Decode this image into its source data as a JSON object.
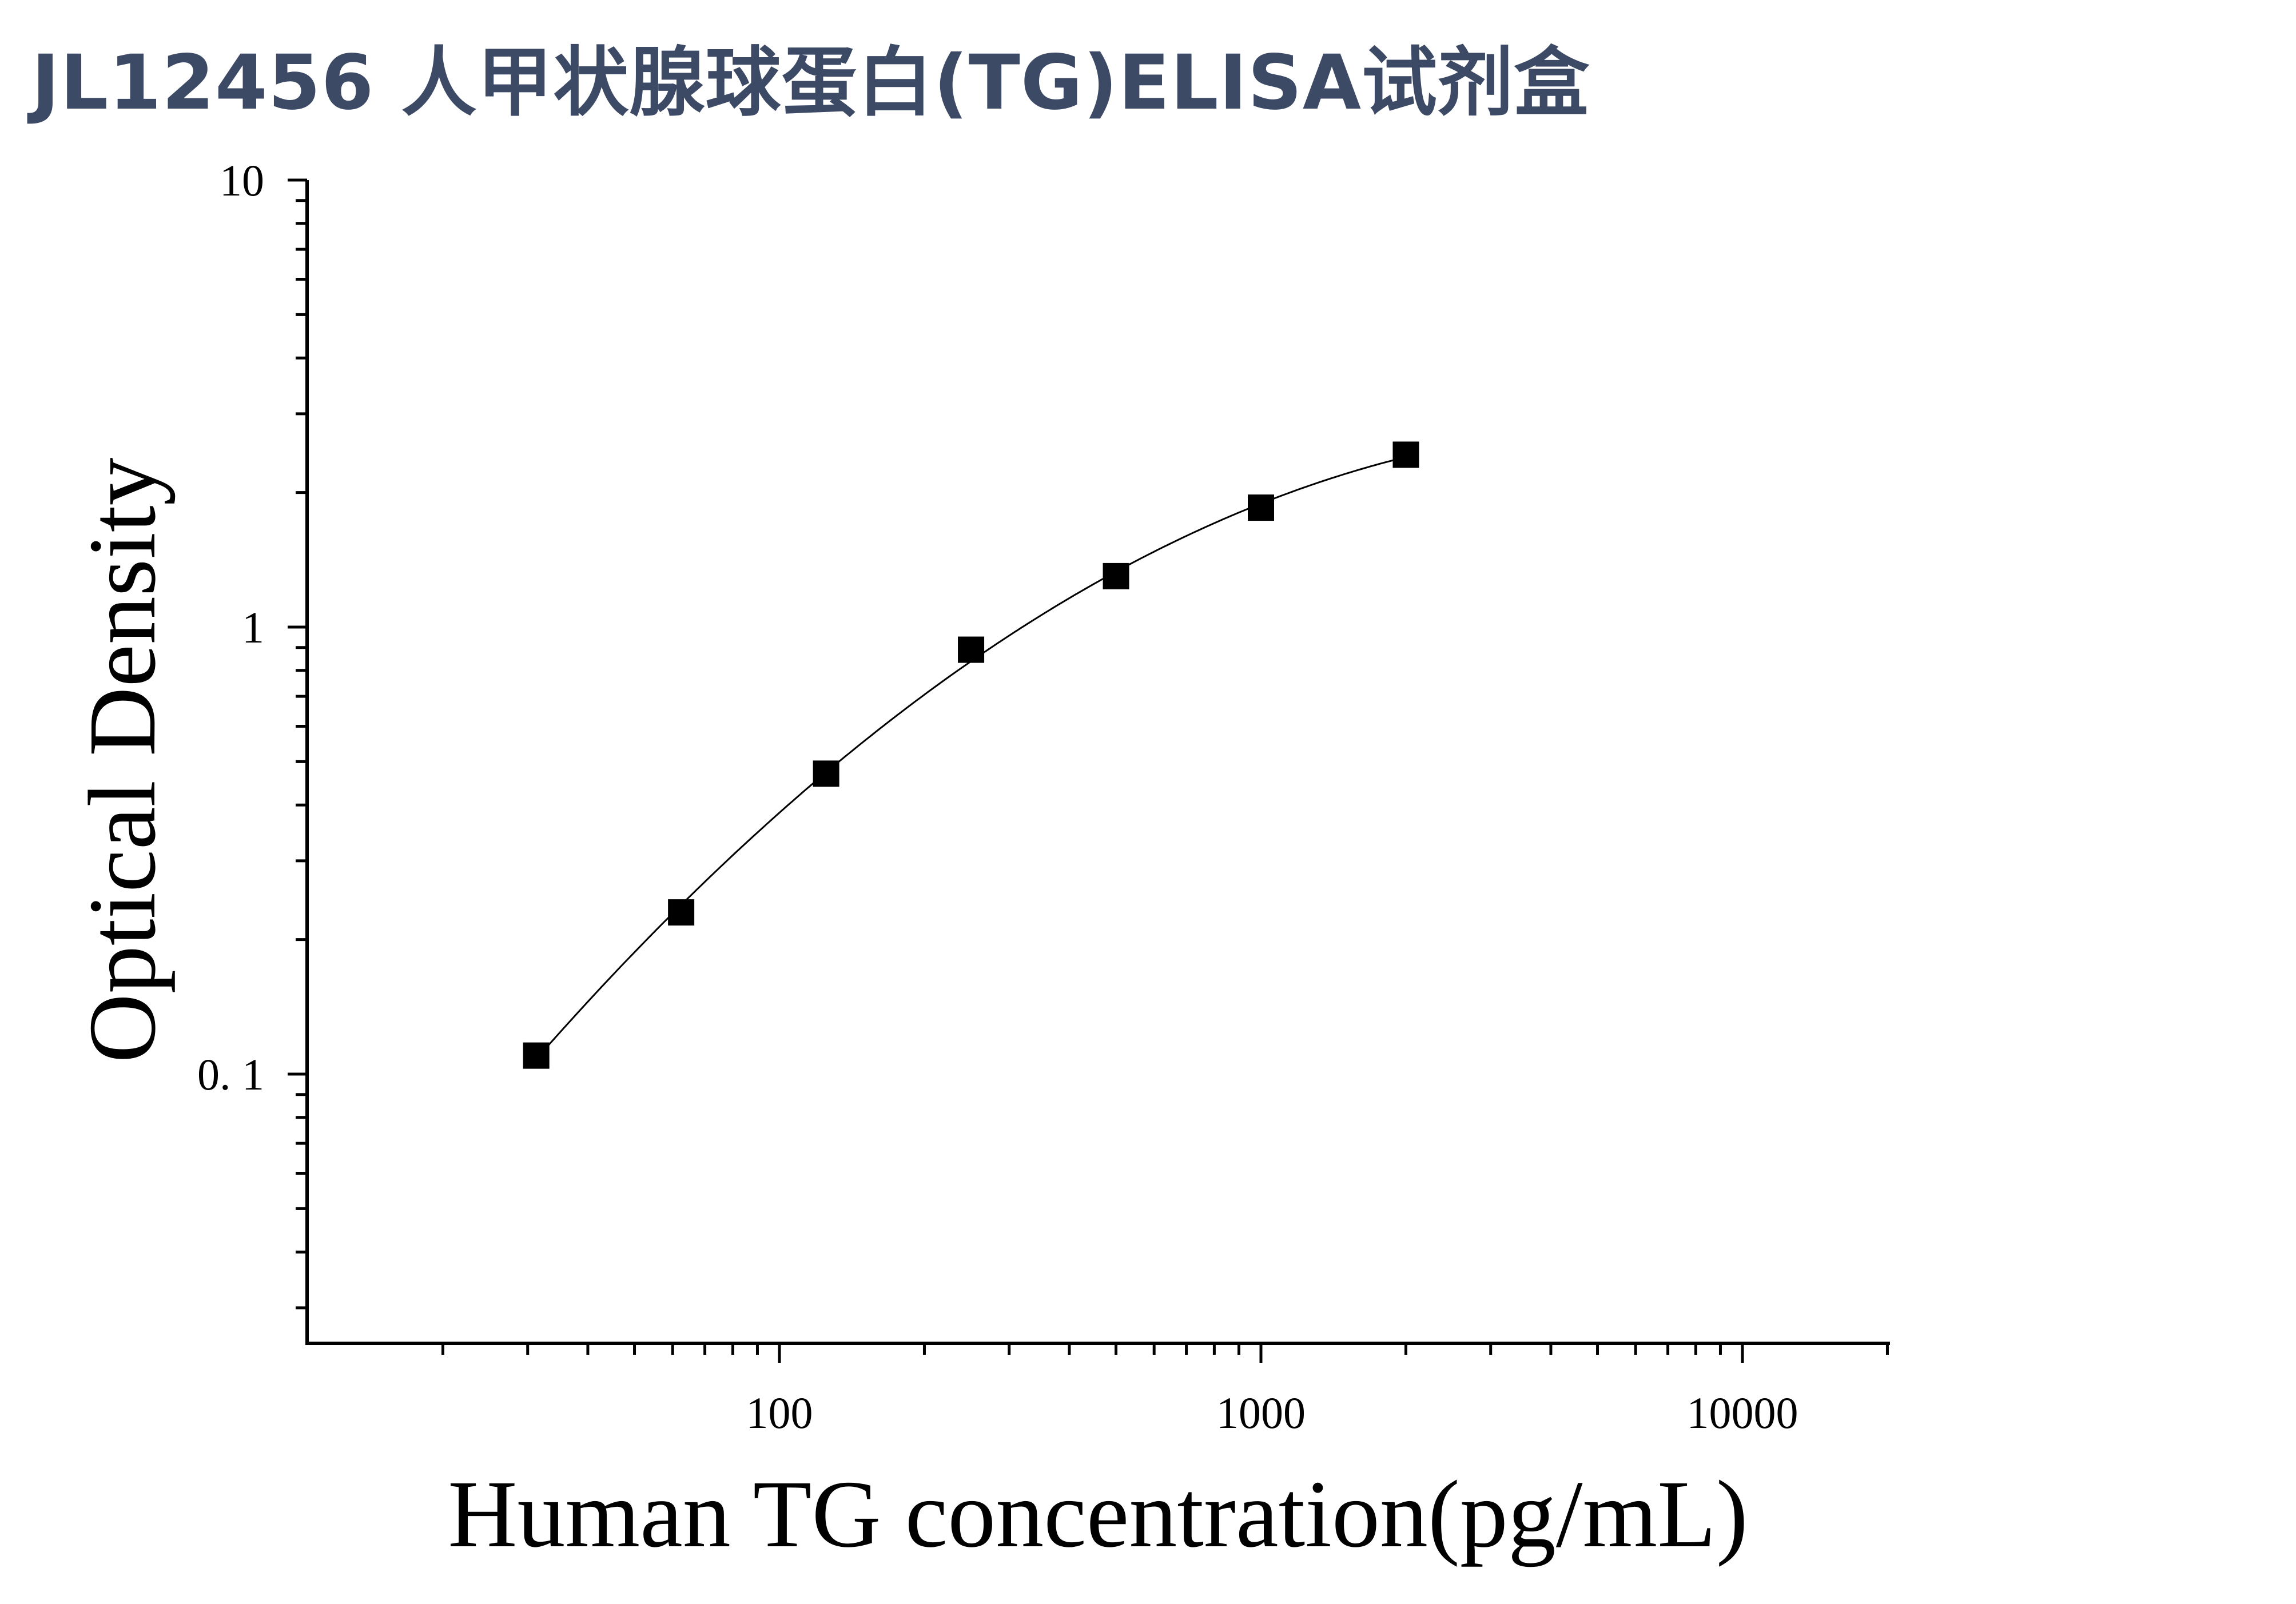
{
  "title": "JL12456 人甲状腺球蛋白(TG)ELISA试剂盒",
  "chart_data": {
    "type": "scatter",
    "title": "JL12456 人甲状腺球蛋白(TG)ELISA试剂盒",
    "xlabel": "Human TG concentration(pg/mL)",
    "ylabel": "Optical Density",
    "x_scale": "log",
    "y_scale": "log",
    "xlim": [
      10,
      20000
    ],
    "ylim": [
      0.03,
      10
    ],
    "x_ticks": [
      {
        "value": 100,
        "label": "100"
      },
      {
        "value": 1000,
        "label": "1000"
      },
      {
        "value": 10000,
        "label": "10000"
      }
    ],
    "y_ticks": [
      {
        "value": 0.1,
        "label": "0. 1"
      },
      {
        "value": 1,
        "label": "1"
      },
      {
        "value": 10,
        "label": "10"
      }
    ],
    "grid": false,
    "legend": "none",
    "series": [
      {
        "x": [
          31.25,
          62.5,
          125,
          250,
          500,
          1000,
          2000
        ],
        "y": [
          0.11,
          0.23,
          0.47,
          0.89,
          1.3,
          1.85,
          2.43
        ],
        "marker": "square",
        "color": "#000000",
        "fit_curve": true
      }
    ]
  }
}
